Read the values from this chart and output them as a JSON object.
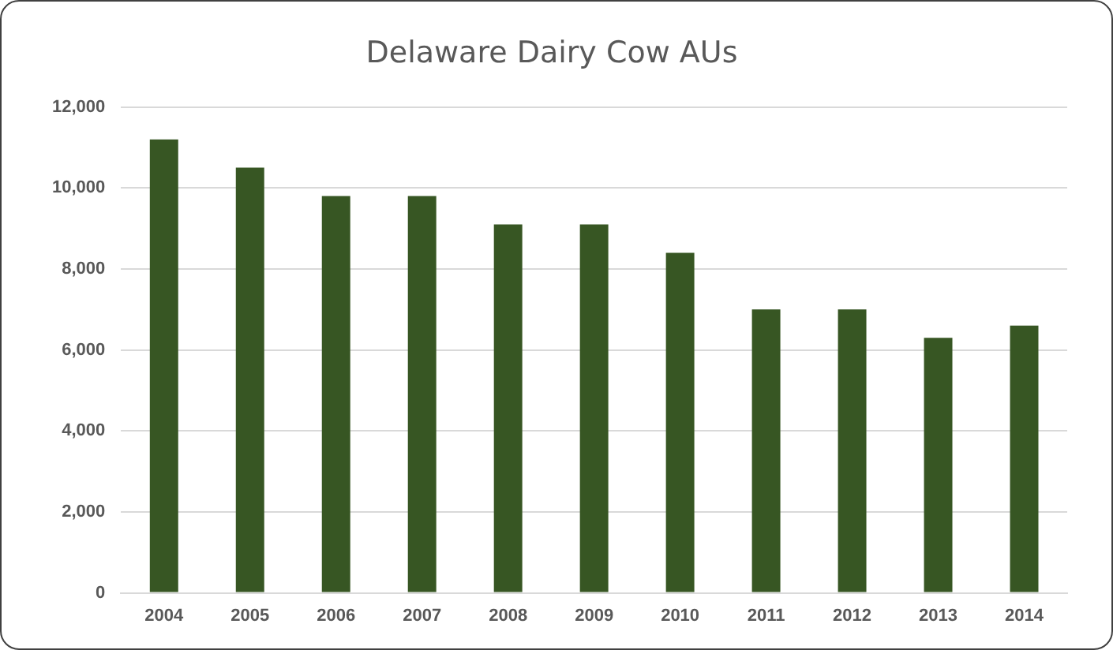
{
  "chart_data": {
    "type": "bar",
    "title": "Delaware Dairy Cow AUs",
    "categories": [
      "2004",
      "2005",
      "2006",
      "2007",
      "2008",
      "2009",
      "2010",
      "2011",
      "2012",
      "2013",
      "2014"
    ],
    "values": [
      11200,
      10500,
      9800,
      9800,
      9100,
      9100,
      8400,
      7000,
      7000,
      6300,
      6600
    ],
    "color": "#375623",
    "ylim": [
      0,
      12000
    ],
    "yticks": [
      0,
      {
        "value": 2000,
        "label": "2,000"
      },
      {
        "value": 4000,
        "label": "4,000"
      },
      {
        "value": 6000,
        "label": "6,000"
      },
      {
        "value": 8000,
        "label": "8,000"
      },
      {
        "value": 10000,
        "label": "10,000"
      },
      {
        "value": 12000,
        "label": "12,000"
      }
    ],
    "grid": "y"
  }
}
